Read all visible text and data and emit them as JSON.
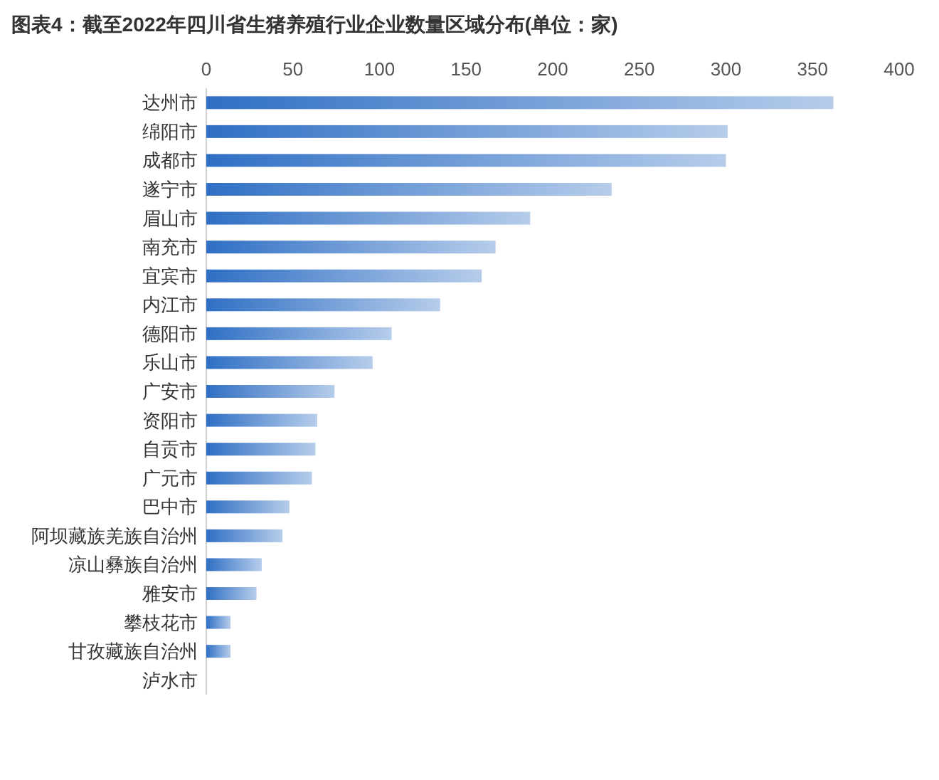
{
  "chart_data": {
    "type": "bar",
    "orientation": "horizontal",
    "title": "图表4：截至2022年四川省生猪养殖行业企业数量区域分布(单位：家)",
    "categories": [
      "达州市",
      "绵阳市",
      "成都市",
      "遂宁市",
      "眉山市",
      "南充市",
      "宜宾市",
      "内江市",
      "德阳市",
      "乐山市",
      "广安市",
      "资阳市",
      "自贡市",
      "广元市",
      "巴中市",
      "阿坝藏族羌族自治州",
      "凉山彝族自治州",
      "雅安市",
      "攀枝花市",
      "甘孜藏族自治州",
      "泸水市"
    ],
    "values": [
      362,
      301,
      300,
      234,
      187,
      167,
      159,
      135,
      107,
      96,
      74,
      64,
      63,
      61,
      48,
      44,
      32,
      29,
      14,
      14,
      0
    ],
    "color": "#2f6fc4",
    "xlim": [
      0,
      400
    ],
    "xticks": [
      0,
      50,
      100,
      150,
      200,
      250,
      300,
      350,
      400
    ],
    "grid": false
  }
}
